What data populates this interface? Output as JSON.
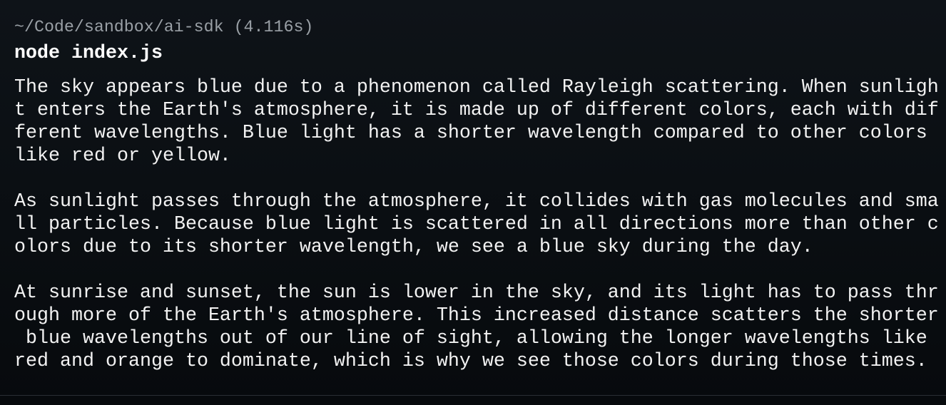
{
  "terminal": {
    "prompt": "~/Code/sandbox/ai-sdk (4.116s)",
    "command": "node index.js",
    "output": [
      [
        "The sky appears blue due to a phenomenon called Rayleigh scattering. When sunligh",
        "t enters the Earth's atmosphere, it is made up of different colors, each with dif",
        "ferent wavelengths. Blue light has a shorter wavelength compared to other colors ",
        "like red or yellow."
      ],
      [
        "As sunlight passes through the atmosphere, it collides with gas molecules and sma",
        "ll particles. Because blue light is scattered in all directions more than other c",
        "olors due to its shorter wavelength, we see a blue sky during the day."
      ],
      [
        "At sunrise and sunset, the sun is lower in the sky, and its light has to pass thr",
        "ough more of the Earth's atmosphere. This increased distance scatters the shorter",
        " blue wavelengths out of our line of sight, allowing the longer wavelengths like",
        "red and orange to dominate, which is why we see those colors during those times."
      ]
    ]
  }
}
